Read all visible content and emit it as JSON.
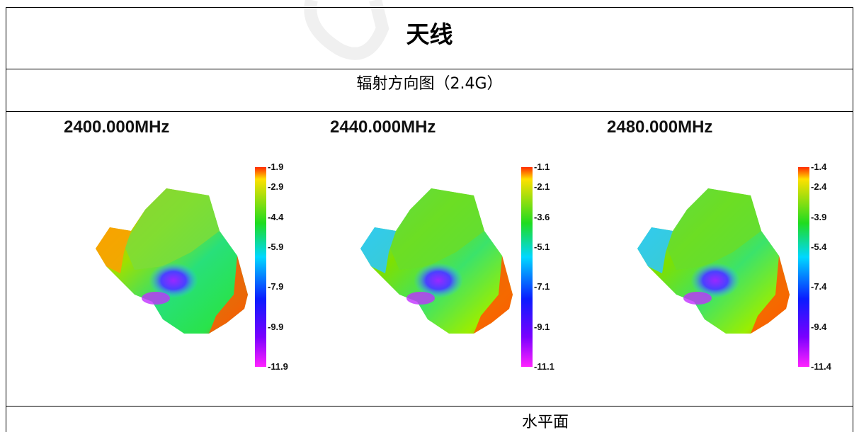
{
  "document": {
    "title": "天线",
    "subtitle": "辐射方向图（2.4G）",
    "bottom_label": "水平面"
  },
  "panels": [
    {
      "freq_label": "2400.000MHz",
      "colorbar_ticks": [
        "-1.9",
        "-2.9",
        "-4.4",
        "-5.9",
        "-7.9",
        "-9.9",
        "-11.9"
      ],
      "tick_values": [
        -1.9,
        -2.9,
        -4.4,
        -5.9,
        -7.9,
        -9.9,
        -11.9
      ]
    },
    {
      "freq_label": "2440.000MHz",
      "colorbar_ticks": [
        "-1.1",
        "-2.1",
        "-3.6",
        "-5.1",
        "-7.1",
        "-9.1",
        "-11.1"
      ],
      "tick_values": [
        -1.1,
        -2.1,
        -3.6,
        -5.1,
        -7.1,
        -9.1,
        -11.1
      ]
    },
    {
      "freq_label": "2480.000MHz",
      "colorbar_ticks": [
        "-1.4",
        "-2.4",
        "-3.9",
        "-5.4",
        "-7.4",
        "-9.4",
        "-11.4"
      ],
      "tick_values": [
        -1.4,
        -2.4,
        -3.9,
        -5.4,
        -7.4,
        -9.4,
        -11.4
      ]
    }
  ],
  "colors": {
    "scale": [
      "#ff2a00",
      "#ffe000",
      "#1fdc1f",
      "#00d8ff",
      "#0a1cff",
      "#7a00ff",
      "#ff22ff"
    ]
  }
}
